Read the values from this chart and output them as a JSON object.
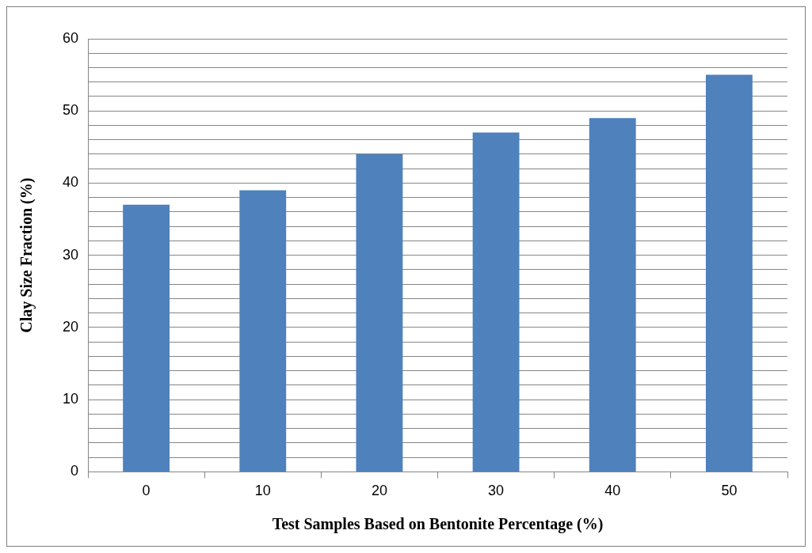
{
  "chart_data": {
    "type": "bar",
    "xlabel": "Test Samples Based on Bentonite Percentage (%)",
    "ylabel": "Clay Size Fraction (%)",
    "categories": [
      "0",
      "10",
      "20",
      "30",
      "40",
      "50"
    ],
    "values": [
      37,
      39,
      44,
      47,
      49,
      55
    ],
    "color": "#4f81bd",
    "ylim": [
      0,
      60
    ],
    "yticks": [
      0,
      {
        "value": 2,
        "label": null
      },
      {
        "value": 4,
        "label": null
      },
      {
        "value": 6,
        "label": null
      },
      {
        "value": 8,
        "label": null
      },
      10,
      {
        "value": 12,
        "label": null
      },
      {
        "value": 14,
        "label": null
      },
      {
        "value": 16,
        "label": null
      },
      {
        "value": 18,
        "label": null
      },
      20,
      {
        "value": 22,
        "label": null
      },
      {
        "value": 24,
        "label": null
      },
      {
        "value": 26,
        "label": null
      },
      {
        "value": 28,
        "label": null
      },
      30,
      {
        "value": 32,
        "label": null
      },
      {
        "value": 34,
        "label": null
      },
      {
        "value": 36,
        "label": null
      },
      {
        "value": 38,
        "label": null
      },
      40,
      {
        "value": 42,
        "label": null
      },
      {
        "value": 44,
        "label": null
      },
      {
        "value": 46,
        "label": null
      },
      {
        "value": 48,
        "label": null
      },
      50,
      {
        "value": 52,
        "label": null
      },
      {
        "value": 54,
        "label": null
      },
      {
        "value": 56,
        "label": null
      },
      {
        "value": 58,
        "label": null
      },
      60
    ],
    "grid": "y",
    "legend": false
  }
}
